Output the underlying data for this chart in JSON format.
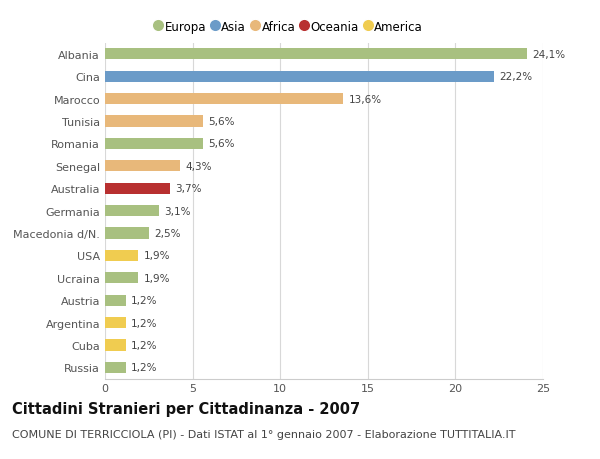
{
  "categories": [
    "Albania",
    "Cina",
    "Marocco",
    "Tunisia",
    "Romania",
    "Senegal",
    "Australia",
    "Germania",
    "Macedonia d/N.",
    "USA",
    "Ucraina",
    "Austria",
    "Argentina",
    "Cuba",
    "Russia"
  ],
  "values": [
    24.1,
    22.2,
    13.6,
    5.6,
    5.6,
    4.3,
    3.7,
    3.1,
    2.5,
    1.9,
    1.9,
    1.2,
    1.2,
    1.2,
    1.2
  ],
  "labels": [
    "24,1%",
    "22,2%",
    "13,6%",
    "5,6%",
    "5,6%",
    "4,3%",
    "3,7%",
    "3,1%",
    "2,5%",
    "1,9%",
    "1,9%",
    "1,2%",
    "1,2%",
    "1,2%",
    "1,2%"
  ],
  "continents": [
    "Europa",
    "Asia",
    "Africa",
    "Africa",
    "Europa",
    "Africa",
    "Oceania",
    "Europa",
    "Europa",
    "America",
    "Europa",
    "Europa",
    "America",
    "America",
    "Europa"
  ],
  "continent_colors": {
    "Europa": "#a8c080",
    "Asia": "#6b9bc8",
    "Africa": "#e8b87a",
    "Oceania": "#b83030",
    "America": "#f0cc50"
  },
  "legend_order": [
    "Europa",
    "Asia",
    "Africa",
    "Oceania",
    "America"
  ],
  "title": "Cittadini Stranieri per Cittadinanza - 2007",
  "subtitle": "COMUNE DI TERRICCIOLA (PI) - Dati ISTAT al 1° gennaio 2007 - Elaborazione TUTTITALIA.IT",
  "xlim": [
    0,
    25
  ],
  "xticks": [
    0,
    5,
    10,
    15,
    20,
    25
  ],
  "bg_color": "#ffffff",
  "plot_bg_color": "#ffffff",
  "grid_color": "#d8d8d8",
  "bar_height": 0.5,
  "title_fontsize": 10.5,
  "subtitle_fontsize": 8,
  "label_fontsize": 7.5,
  "tick_fontsize": 8,
  "legend_fontsize": 8.5
}
